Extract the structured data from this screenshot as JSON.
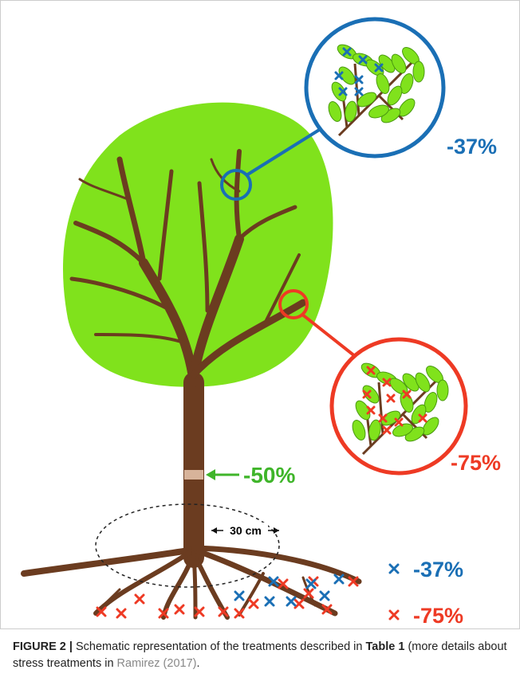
{
  "figure": {
    "labels": {
      "upper_reduction": "-37%",
      "lower_reduction": "-75%",
      "girdling": "-50%",
      "root_zone": "30 cm"
    },
    "legend": [
      {
        "label": "-37%"
      },
      {
        "label": "-75%"
      }
    ],
    "caption": {
      "label": "FIGURE 2 |",
      "text": "Schematic representation of the treatments described in",
      "table_ref": "Table 1",
      "text2": "(more details about stress treatments in",
      "citation": "Ramirez (2017)",
      "end": "."
    }
  }
}
